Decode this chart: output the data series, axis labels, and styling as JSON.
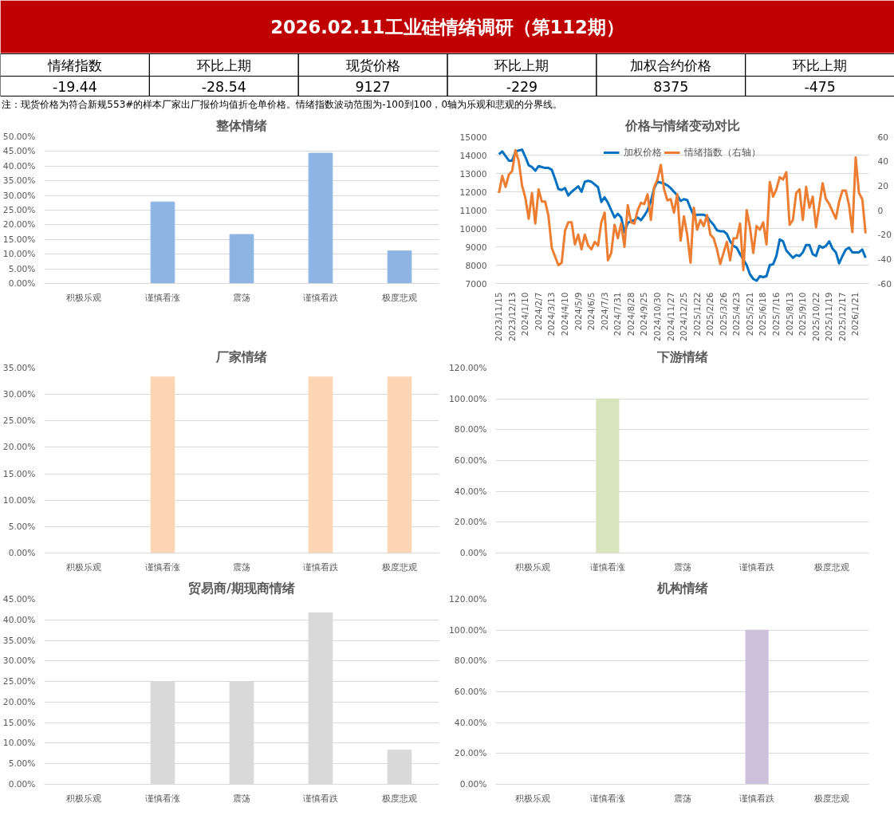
{
  "chart_data": [
    {
      "type": "other",
      "title": "2026.02.11工业硅情绪调研（第112期）",
      "categories": [
        "情绪指数",
        "环比上期",
        "现货价格",
        "环比上期",
        "加权合约价格",
        "环比上期"
      ],
      "values": [
        -19.44,
        -28.54,
        9127,
        -229,
        8375,
        -475
      ],
      "data_labels": true,
      "annotations": [
        "注：现货价格为符合新规553#的样本厂家出厂报价均值折仓单价格。情绪指数波动范围为-100到100，0轴为乐观和悲观的分界线。"
      ]
    },
    {
      "type": "bar",
      "title": "整体情绪",
      "categories": [
        "积极乐观",
        "谨慎看涨",
        "震荡",
        "谨慎看跌",
        "极度悲观"
      ],
      "values": [
        0,
        27.8,
        16.7,
        44.4,
        11.1
      ],
      "color": "#8eb4e3",
      "ylim": [
        0,
        50
      ],
      "yticks": [
        {
          "value": 0,
          "label": "0.00%"
        },
        {
          "value": 5,
          "label": "5.00%"
        },
        {
          "value": 10,
          "label": "10.00%"
        },
        {
          "value": 15,
          "label": "15.00%"
        },
        {
          "value": 20,
          "label": "20.00%"
        },
        {
          "value": 25,
          "label": "25.00%"
        },
        {
          "value": 30,
          "label": "30.00%"
        },
        {
          "value": 35,
          "label": "35.00%"
        },
        {
          "value": 40,
          "label": "40.00%"
        },
        {
          "value": 45,
          "label": "45.00%"
        },
        {
          "value": 50,
          "label": "50.00%"
        }
      ],
      "grid": "y"
    },
    {
      "type": "line",
      "title": "价格与情绪变动对比",
      "categories": [
        "2023/11/15",
        null,
        null,
        null,
        "2023/12/13",
        null,
        null,
        null,
        "2024/1/10",
        null,
        null,
        null,
        "2024/2/7",
        null,
        null,
        null,
        "2024/3/13",
        null,
        null,
        null,
        "2024/4/10",
        null,
        null,
        null,
        "2024/5/9",
        null,
        null,
        null,
        "2024/6/5",
        null,
        null,
        null,
        "2024/7/3",
        null,
        null,
        null,
        "2024/7/31",
        null,
        null,
        null,
        "2024/8/28",
        null,
        null,
        null,
        "2024/9/25",
        null,
        null,
        null,
        "2024/10/30",
        null,
        null,
        null,
        "2024/11/27",
        null,
        null,
        null,
        "2024/12/25",
        null,
        null,
        null,
        "2025/1/22",
        null,
        null,
        null,
        "2025/2/26",
        null,
        null,
        null,
        "2025/3/26",
        null,
        null,
        null,
        "2025/4/23",
        null,
        null,
        null,
        "2025/5/21",
        null,
        null,
        null,
        "2025/6/18",
        null,
        null,
        null,
        "2025/7/16",
        null,
        null,
        null,
        "2025/8/13",
        null,
        null,
        null,
        "2025/9/10",
        null,
        null,
        null,
        "2025/10/22",
        null,
        null,
        null,
        "2025/11/19",
        null,
        null,
        null,
        "2025/12/17",
        null,
        null,
        null,
        "2026/1/21",
        null,
        null,
        null
      ],
      "series": [
        {
          "name": "加权价格",
          "color": "#0070c0",
          "values": [
            14050,
            14200,
            13950,
            13700,
            13700,
            14200,
            14250,
            14300,
            13900,
            13450,
            13350,
            13150,
            13400,
            13350,
            13300,
            13300,
            13200,
            12700,
            12150,
            12100,
            12200,
            11800,
            12000,
            12150,
            12300,
            12000,
            12550,
            12600,
            12550,
            12400,
            12250,
            11450,
            11700,
            11400,
            11000,
            10600,
            10800,
            10600,
            9800,
            10300,
            10400,
            10450,
            10600,
            10450,
            10700,
            11000,
            11500,
            12200,
            12550,
            12500,
            12450,
            12350,
            12200,
            12000,
            11800,
            11500,
            11600,
            11550,
            11100,
            10700,
            10750,
            10750,
            10750,
            10650,
            10400,
            10200,
            9900,
            9850,
            9850,
            9700,
            9300,
            9050,
            8950,
            8600,
            8300,
            8000,
            7500,
            7250,
            7150,
            7400,
            7350,
            7400,
            8000,
            8050,
            8500,
            9400,
            9300,
            8800,
            8600,
            8400,
            8550,
            8500,
            8700,
            9100,
            9100,
            8600,
            8500,
            9050,
            8950,
            9050,
            9300,
            8900,
            8700,
            8100,
            8500,
            8850,
            8950,
            8700,
            8700,
            8700,
            8850,
            8400
          ]
        },
        {
          "name": "情绪指数（右轴）",
          "color": "#ed7d31",
          "axis": "y2",
          "values": [
            14,
            28,
            19,
            29,
            32,
            49,
            40,
            20,
            10,
            -7,
            14,
            -11,
            17,
            7,
            7,
            -5,
            -31,
            -38,
            -45,
            -43,
            -17,
            -10,
            -10,
            -28,
            -20,
            -32,
            -20,
            -29,
            -32,
            -26,
            -29,
            -10,
            -2,
            -41,
            -35,
            -12,
            -23,
            -11,
            -30,
            4,
            -10,
            -11,
            0,
            6,
            5,
            13,
            -8,
            19,
            25,
            37,
            17,
            8,
            9,
            -2,
            13,
            -25,
            -5,
            -20,
            -43,
            2,
            -16,
            -8,
            -13,
            -4,
            -20,
            -23,
            -32,
            -44,
            -35,
            -26,
            -41,
            -23,
            -23,
            -11,
            -49,
            0,
            -14,
            -35,
            -13,
            -16,
            -10,
            -28,
            23,
            11,
            17,
            27,
            25,
            31,
            -12,
            -8,
            14,
            17,
            -8,
            19,
            2,
            11,
            -14,
            4,
            22,
            9,
            5,
            -1,
            -7,
            7,
            16,
            16,
            4,
            -18,
            43,
            14,
            9,
            -19
          ]
        }
      ],
      "ylim": [
        7000,
        15000
      ],
      "yticks": [
        7000,
        8000,
        9000,
        10000,
        11000,
        12000,
        13000,
        14000,
        15000
      ],
      "y2lim": [
        -60,
        60
      ],
      "y2ticks": [
        -60,
        -40,
        -20,
        0,
        20,
        40,
        60
      ],
      "grid": "y",
      "legend": "top",
      "line_style": "solid"
    },
    {
      "type": "bar",
      "title": "厂家情绪",
      "categories": [
        "积极乐观",
        "谨慎看涨",
        "震荡",
        "谨慎看跌",
        "极度悲观"
      ],
      "values": [
        0,
        33.3,
        0,
        33.3,
        33.3
      ],
      "color": "#fcd5b4",
      "ylim": [
        0,
        35
      ],
      "yticks": [
        {
          "value": 0,
          "label": "0.00%"
        },
        {
          "value": 5,
          "label": "5.00%"
        },
        {
          "value": 10,
          "label": "10.00%"
        },
        {
          "value": 15,
          "label": "15.00%"
        },
        {
          "value": 20,
          "label": "20.00%"
        },
        {
          "value": 25,
          "label": "25.00%"
        },
        {
          "value": 30,
          "label": "30.00%"
        },
        {
          "value": 35,
          "label": "35.00%"
        }
      ],
      "grid": "y"
    },
    {
      "type": "bar",
      "title": "下游情绪",
      "categories": [
        "积极乐观",
        "谨慎看涨",
        "震荡",
        "谨慎看跌",
        "极度悲观"
      ],
      "values": [
        0,
        100,
        0,
        0,
        0
      ],
      "color": "#d7e4bc",
      "ylim": [
        0,
        120
      ],
      "yticks": [
        {
          "value": 0,
          "label": "0.00%"
        },
        {
          "value": 20,
          "label": "20.00%"
        },
        {
          "value": 40,
          "label": "40.00%"
        },
        {
          "value": 60,
          "label": "60.00%"
        },
        {
          "value": 80,
          "label": "80.00%"
        },
        {
          "value": 100,
          "label": "100.00%"
        },
        {
          "value": 120,
          "label": "120.00%"
        }
      ],
      "grid": "y"
    },
    {
      "type": "bar",
      "title": "贸易商/期现商情绪",
      "categories": [
        "积极乐观",
        "谨慎看涨",
        "震荡",
        "谨慎看跌",
        "极度悲观"
      ],
      "values": [
        0,
        25,
        25,
        41.7,
        8.3
      ],
      "color": "#d9d9d9",
      "ylim": [
        0,
        45
      ],
      "yticks": [
        {
          "value": 0,
          "label": "0.00%"
        },
        {
          "value": 5,
          "label": "5.00%"
        },
        {
          "value": 10,
          "label": "10.00%"
        },
        {
          "value": 15,
          "label": "15.00%"
        },
        {
          "value": 20,
          "label": "20.00%"
        },
        {
          "value": 25,
          "label": "25.00%"
        },
        {
          "value": 30,
          "label": "30.00%"
        },
        {
          "value": 35,
          "label": "35.00%"
        },
        {
          "value": 40,
          "label": "40.00%"
        },
        {
          "value": 45,
          "label": "45.00%"
        }
      ],
      "grid": "y"
    },
    {
      "type": "bar",
      "title": "机构情绪",
      "categories": [
        "积极乐观",
        "谨慎看涨",
        "震荡",
        "谨慎看跌",
        "极度悲观"
      ],
      "values": [
        0,
        0,
        0,
        100,
        0
      ],
      "color": "#ccc0da",
      "ylim": [
        0,
        120
      ],
      "yticks": [
        {
          "value": 0,
          "label": "0.00%"
        },
        {
          "value": 20,
          "label": "20.00%"
        },
        {
          "value": 40,
          "label": "40.00%"
        },
        {
          "value": 60,
          "label": "60.00%"
        },
        {
          "value": 80,
          "label": "80.00%"
        },
        {
          "value": 100,
          "label": "100.00%"
        },
        {
          "value": 120,
          "label": "120.00%"
        }
      ],
      "grid": "y"
    }
  ]
}
